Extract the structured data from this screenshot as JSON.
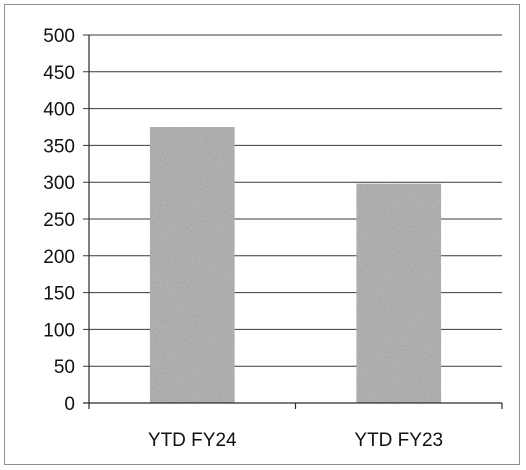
{
  "chart_data": {
    "type": "bar",
    "categories": [
      "YTD FY24",
      "YTD FY23"
    ],
    "series": [
      {
        "values": [
          375,
          298
        ]
      }
    ],
    "ylim": [
      0,
      500
    ],
    "yticks": [
      0,
      50,
      100,
      150,
      200,
      250,
      300,
      350,
      400,
      450,
      500
    ],
    "grid": true,
    "legend": "none",
    "bar_color": "#a8a8a8"
  }
}
